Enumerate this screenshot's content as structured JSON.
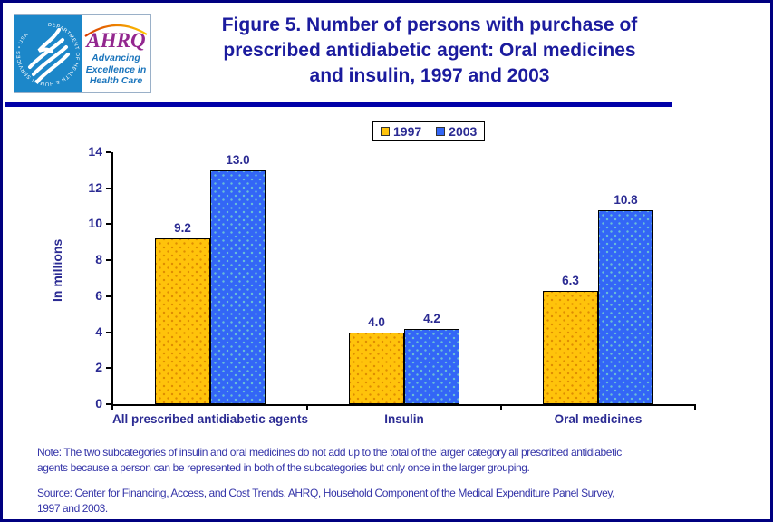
{
  "logo": {
    "seal_text": "DEPARTMENT OF HEALTH & HUMAN SERVICES • USA",
    "ahrq": "AHRQ",
    "tagline_lines": [
      "Advancing",
      "Excellence in",
      "Health Care"
    ]
  },
  "header": {
    "title_lines": [
      "Figure 5. Number of persons with purchase of",
      "prescribed antidiabetic agent: Oral medicines",
      "and insulin, 1997 and 2003"
    ]
  },
  "footer": {
    "note_lines": [
      "Note: The two subcategories of insulin and oral medicines do not add up to the total of the larger category all prescribed antidiabetic",
      "agents because a person can be represented in both of the subcategories but only once in the larger grouping."
    ],
    "source_lines": [
      "Source: Center for Financing, Access, and Cost Trends, AHRQ, Household Component of the Medical Expenditure Panel Survey,",
      "1997 and 2003."
    ]
  },
  "colors": {
    "frame_border": "#000080",
    "title_text": "#1b1b9e",
    "title_rule": "#0000a8",
    "chart_text": "#2b2b93",
    "footnote_text": "#3434a8",
    "bar_1997": "#ffc30b",
    "bar_2003": "#3366f6",
    "hhs_panel_blue": "#1c87c9",
    "ahrq_purple": "#93278f",
    "tagline_blue": "#1b75bc"
  },
  "chart_data": {
    "type": "bar",
    "categories": [
      "All prescribed antidiabetic agents",
      "Insulin",
      "Oral medicines"
    ],
    "series": [
      {
        "name": "1997",
        "color": "#ffc30b",
        "values": [
          9.2,
          4.0,
          6.3
        ]
      },
      {
        "name": "2003",
        "color": "#3366f6",
        "values": [
          13.0,
          4.2,
          10.8
        ]
      }
    ],
    "ylabel": "In millions",
    "ylim": [
      0,
      14
    ],
    "ytick_step": 2,
    "grid": false,
    "legend_position": "top-center",
    "value_label_decimals": 1
  }
}
